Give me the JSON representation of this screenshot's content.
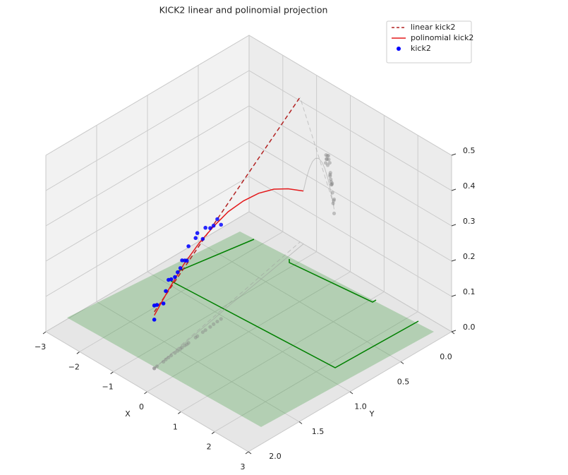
{
  "chart_data": {
    "type": "scatter3d",
    "title": "KICK2 linear and polinomial projection",
    "xlabel": "X",
    "ylabel": "Y",
    "xlim": [
      -3,
      3
    ],
    "ylim": [
      0,
      2
    ],
    "zlim": [
      0,
      0.5
    ],
    "xticks": [
      {
        "value": -3,
        "label": "−3"
      },
      {
        "value": -2,
        "label": "−2"
      },
      {
        "value": -1,
        "label": "−1"
      },
      0,
      1,
      2,
      3
    ],
    "yticks": [
      {
        "value": 0,
        "label": "0.0"
      },
      {
        "value": 0.5,
        "label": "0.5"
      },
      {
        "value": 1,
        "label": "1.0"
      },
      {
        "value": 1.5,
        "label": "1.5"
      },
      {
        "value": 2,
        "label": "2.0"
      }
    ],
    "zticks": [
      {
        "value": 0,
        "label": "0.0"
      },
      0.1,
      0.2,
      0.3,
      0.4,
      0.5
    ],
    "grid": true,
    "legend": "upper right",
    "series": [
      {
        "name": "linear kick2",
        "kind": "line",
        "style": "dashed",
        "color": "#b22222",
        "x": [
          -0.48,
          -1.49
        ],
        "y": [
          1.77,
          0
        ],
        "z": [
          0.16,
          0.41
        ]
      },
      {
        "name": "polinomial kick2",
        "kind": "line",
        "style": "solid",
        "color": "#e41a1c",
        "x": [
          -0.48,
          -0.57,
          -0.66,
          -0.75,
          -0.84,
          -0.94,
          -1.03,
          -1.12,
          -1.21,
          -1.3,
          -1.39
        ],
        "y": [
          1.77,
          1.59,
          1.42,
          1.24,
          1.06,
          0.89,
          0.71,
          0.53,
          0.35,
          0.18,
          0
        ],
        "z": [
          0.15,
          0.192,
          0.225,
          0.249,
          0.263,
          0.268,
          0.263,
          0.249,
          0.225,
          0.192,
          0.15
        ]
      },
      {
        "name": "kick2",
        "kind": "scatter",
        "color": "#0000ff",
        "x": [
          -0.48,
          -0.48,
          -0.49,
          -0.51,
          -0.53,
          -0.54,
          -0.55,
          -0.56,
          -0.57,
          -0.58,
          -0.59,
          -0.6,
          -0.6,
          -0.61,
          -0.64,
          -0.65,
          -0.67,
          -0.68,
          -0.69,
          -0.71,
          -0.72,
          -0.73
        ],
        "y": [
          1.77,
          1.77,
          1.74,
          1.67,
          1.64,
          1.61,
          1.58,
          1.54,
          1.51,
          1.48,
          1.46,
          1.43,
          1.41,
          1.39,
          1.31,
          1.29,
          1.23,
          1.2,
          1.15,
          1.11,
          1.07,
          1.03
        ],
        "z": [
          0.138,
          0.178,
          0.174,
          0.165,
          0.194,
          0.22,
          0.216,
          0.215,
          0.223,
          0.229,
          0.247,
          0.241,
          0.237,
          0.274,
          0.282,
          0.292,
          0.264,
          0.29,
          0.28,
          0.279,
          0.29,
          0.267
        ]
      }
    ]
  }
}
